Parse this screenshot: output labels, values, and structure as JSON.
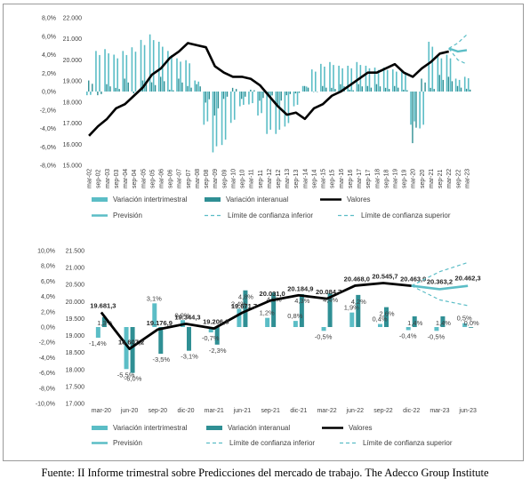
{
  "colors": {
    "intertrimestral": "#5bbdc6",
    "interanual": "#2f8f94",
    "valores": "#000000",
    "prevision": "#5bbdc6",
    "confidence": "#5bbdc6",
    "grid": "#d9d9d9"
  },
  "legend": {
    "intertrimestral": "Variación intertrimestral",
    "interanual": "Variación interanual",
    "valores": "Valores",
    "prevision": "Previsión",
    "limite_inferior": "Límite de confianza inferior",
    "limite_superior": "Límite de confianza superior"
  },
  "source": "Fuente: II Informe trimestral sobre Predicciones del mercado de trabajo. The Adecco Group Institute",
  "chart_data": [
    {
      "type": "bar",
      "left_axis": {
        "ticks": [
          "8,0%",
          "6,0%",
          "4,0%",
          "2,0%",
          "0,0%",
          "-2,0%",
          "-4,0%",
          "-6,0%",
          "-8,0%"
        ],
        "range": [
          -8,
          8
        ]
      },
      "right_axis": {
        "ticks": [
          "22.000",
          "21.000",
          "20.000",
          "19.000",
          "18.000",
          "17.000",
          "16.000",
          "15.000"
        ],
        "range": [
          15000,
          22000
        ]
      },
      "categories": [
        "mar-02",
        "sep-02",
        "mar-03",
        "sep-03",
        "mar-04",
        "sep-04",
        "mar-05",
        "sep-05",
        "mar-06",
        "sep-06",
        "mar-07",
        "sep-07",
        "mar-08",
        "sep-08",
        "mar-09",
        "sep-09",
        "mar-10",
        "sep-10",
        "mar-11",
        "sep-11",
        "mar-12",
        "sep-12",
        "mar-13",
        "sep-13",
        "mar-14",
        "sep-14",
        "mar-15",
        "sep-15",
        "mar-16",
        "sep-16",
        "mar-17",
        "sep-17",
        "mar-18",
        "sep-18",
        "mar-19",
        "sep-19",
        "mar-20",
        "sep-20",
        "mar-21",
        "sep-21",
        "mar-22",
        "sep-22",
        "mar-23"
      ],
      "series": [
        {
          "name": "Variación intertrimestral",
          "values": [
            1.2,
            -0.4,
            0.8,
            0.4,
            1.4,
            -0.2,
            1.2,
            1.0,
            1.6,
            0.2,
            1.4,
            0.6,
            0.8,
            -1.2,
            -2.6,
            -0.8,
            0.4,
            -0.8,
            0.2,
            -1.0,
            -0.6,
            -1.4,
            -0.4,
            -0.2,
            0.6,
            0.0,
            0.6,
            0.4,
            0.8,
            0.2,
            0.8,
            0.6,
            0.8,
            0.4,
            0.6,
            0.2,
            -5.6,
            1.4,
            0.4,
            1.8,
            1.6,
            0.6,
            0.3
          ]
        },
        {
          "name": "Variación interanual",
          "values": [
            -0.4,
            4.4,
            4.6,
            4.0,
            4.4,
            4.8,
            5.6,
            6.2,
            5.4,
            4.4,
            3.6,
            3.4,
            1.2,
            -3.6,
            -6.6,
            -5.8,
            -3.4,
            -1.6,
            -1.4,
            -2.6,
            -4.6,
            -4.6,
            -3.8,
            -1.6,
            0.6,
            2.4,
            3.0,
            3.2,
            2.8,
            2.8,
            3.2,
            2.8,
            2.6,
            2.6,
            2.4,
            2.2,
            -3.6,
            -4.0,
            5.4,
            4.0,
            4.0,
            1.4,
            1.6
          ]
        },
        {
          "name": "Valores",
          "values": [
            16400,
            16850,
            17200,
            17700,
            17900,
            18300,
            18700,
            19300,
            19600,
            20100,
            20400,
            20800,
            20700,
            20600,
            19700,
            19400,
            19200,
            19200,
            19100,
            18800,
            18300,
            17800,
            17400,
            17500,
            17200,
            17700,
            17900,
            18300,
            18500,
            18800,
            19100,
            19400,
            19400,
            19600,
            19800,
            19400,
            19200,
            19600,
            19900,
            20300,
            20400,
            20550,
            20460
          ]
        }
      ],
      "forecast": {
        "x": [
          "sep-22",
          "dic-22",
          "mar-23"
        ],
        "prevision": [
          20545,
          20400,
          20462
        ],
        "lower": [
          20545,
          20000,
          19800
        ],
        "upper": [
          20545,
          20800,
          21200
        ]
      }
    },
    {
      "type": "bar",
      "left_axis": {
        "ticks": [
          "10,0%",
          "8,0%",
          "6,0%",
          "4,0%",
          "2,0%",
          "0,0%",
          "-2,0%",
          "-4,0%",
          "-6,0%",
          "-8,0%",
          "-10,0%"
        ],
        "range": [
          -10,
          10
        ]
      },
      "right_axis": {
        "ticks": [
          "21.500",
          "21.000",
          "20.500",
          "20.000",
          "19.500",
          "19.000",
          "18.500",
          "18.000",
          "17.500",
          "17.000"
        ],
        "range": [
          17000,
          21500
        ]
      },
      "x_labels": [
        "mar-20",
        "jun-20",
        "sep-20",
        "dic-20",
        "mar-21",
        "jun-21",
        "sep-21",
        "dic-21",
        "mar-22",
        "jun-22",
        "sep-22",
        "dic-22",
        "mar-23",
        "jun-23"
      ],
      "series": [
        {
          "name": "Variación intertrimestral",
          "values": [
            -1.4,
            -5.5,
            3.1,
            0.9,
            -0.7,
            2.4,
            1.2,
            0.8,
            -0.5,
            1.9,
            0.4,
            -0.4,
            -0.5,
            0.5
          ],
          "labels": [
            "-1,4%",
            "-5,5%",
            "3,1%",
            "0,9%",
            "-0,7%",
            "2,4%",
            "1,2%",
            "0,8%",
            "-0,5%",
            "1,9%",
            "0,4%",
            "-0,4%",
            "-0,5%",
            "0,5%"
          ]
        },
        {
          "name": "Variación interanual",
          "values": [
            1.3,
            -6.0,
            -3.5,
            -3.1,
            -2.3,
            4.8,
            4.5,
            4.3,
            4.4,
            4.2,
            2.6,
            1.4,
            1.4,
            0.0
          ],
          "labels": [
            "1,3%",
            "-6,0%",
            "-3,5%",
            "-3,1%",
            "-2,3%",
            "4,8%",
            "4,5%",
            "4,3%",
            "4,4%",
            "4,2%",
            "2,6%",
            "1,4%",
            "1,4%",
            "0,0%"
          ]
        },
        {
          "name": "Valores",
          "values": [
            19681.3,
            18607.2,
            19176.9,
            19344.3,
            19206.8,
            19671.7,
            20031.0,
            20184.9,
            20084.7,
            20468.0,
            20545.7,
            20463.9
          ],
          "labels": [
            "19.681,3",
            "18.607,2",
            "19.176,9",
            "19.344,3",
            "19.206,8",
            "19.671,7",
            "20.031,0",
            "20.184,9",
            "20.084,7",
            "20.468,0",
            "20.545,7",
            "20.463,9"
          ]
        }
      ],
      "forecast": {
        "x": [
          "dic-22",
          "mar-23",
          "jun-23"
        ],
        "prevision": [
          20463.9,
          20363.2,
          20462.3
        ],
        "prevision_labels": [
          "",
          "20.363,2",
          "20.462,3"
        ],
        "lower": [
          20463.9,
          20050,
          19880
        ],
        "upper": [
          20463.9,
          20880,
          21150
        ]
      }
    }
  ]
}
